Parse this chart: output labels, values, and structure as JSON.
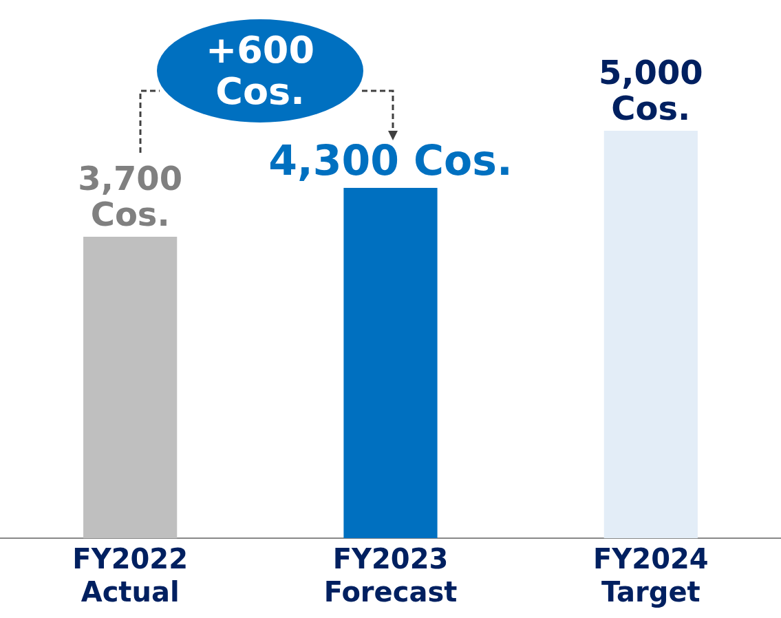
{
  "chart_data": {
    "type": "bar",
    "categories": [
      "FY2022 Actual",
      "FY2023 Forecast",
      "FY2024 Target"
    ],
    "values": [
      3700,
      4300,
      5000
    ],
    "colors": [
      "#bfbfbf",
      "#0070c0",
      "#e3edf7"
    ],
    "value_labels": [
      "3,700 Cos.",
      "4,300 Cos.",
      "5,000 Cos."
    ],
    "grid": false,
    "legend": false,
    "annotations": [
      "+600 Cos."
    ]
  }
}
